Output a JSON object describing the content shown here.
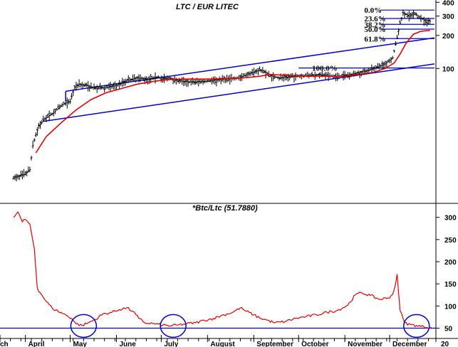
{
  "chart_data": [
    {
      "type": "candlestick",
      "title": "LTC / EUR LITEC",
      "y_scale": "log",
      "ylim": [
        6,
        420
      ],
      "y_ticks": [
        {
          "label": "400",
          "value": 400
        },
        {
          "label": "300",
          "value": 300
        },
        {
          "label": "200",
          "value": 200
        },
        {
          "label": "100",
          "value": 100
        }
      ],
      "price_path": [
        [
          "2021-03-24",
          10
        ],
        [
          "2021-03-28",
          10.5
        ],
        [
          "2021-04-01",
          11
        ],
        [
          "2021-04-04",
          12
        ],
        [
          "2021-04-06",
          20
        ],
        [
          "2021-04-08",
          25
        ],
        [
          "2021-04-10",
          30
        ],
        [
          "2021-04-14",
          35
        ],
        [
          "2021-04-18",
          38
        ],
        [
          "2021-04-22",
          42
        ],
        [
          "2021-04-27",
          48
        ],
        [
          "2021-05-01",
          50
        ],
        [
          "2021-05-04",
          68
        ],
        [
          "2021-05-07",
          72
        ],
        [
          "2021-05-12",
          70
        ],
        [
          "2021-05-18",
          66
        ],
        [
          "2021-05-25",
          67
        ],
        [
          "2021-06-01",
          70
        ],
        [
          "2021-06-08",
          78
        ],
        [
          "2021-06-15",
          82
        ],
        [
          "2021-06-22",
          80
        ],
        [
          "2021-06-29",
          84
        ],
        [
          "2021-07-01",
          80
        ],
        [
          "2021-07-06",
          82
        ],
        [
          "2021-07-13",
          77
        ],
        [
          "2021-07-22",
          75
        ],
        [
          "2021-08-01",
          77
        ],
        [
          "2021-08-12",
          80
        ],
        [
          "2021-08-22",
          82
        ],
        [
          "2021-08-29",
          90
        ],
        [
          "2021-09-05",
          97
        ],
        [
          "2021-09-08",
          94
        ],
        [
          "2021-09-12",
          86
        ],
        [
          "2021-09-18",
          82
        ],
        [
          "2021-09-25",
          84
        ],
        [
          "2021-10-05",
          86
        ],
        [
          "2021-10-15",
          88
        ],
        [
          "2021-10-25",
          84
        ],
        [
          "2021-11-05",
          88
        ],
        [
          "2021-11-15",
          95
        ],
        [
          "2021-11-22",
          102
        ],
        [
          "2021-11-28",
          110
        ],
        [
          "2021-12-03",
          125
        ],
        [
          "2021-12-06",
          190
        ],
        [
          "2021-12-08",
          260
        ],
        [
          "2021-12-10",
          320
        ],
        [
          "2021-12-14",
          300
        ],
        [
          "2021-12-18",
          315
        ],
        [
          "2021-12-24",
          275
        ],
        [
          "2021-12-28",
          270
        ]
      ],
      "moving_average": [
        [
          "2021-04-08",
          17
        ],
        [
          "2021-04-15",
          24
        ],
        [
          "2021-04-25",
          32
        ],
        [
          "2021-05-05",
          42
        ],
        [
          "2021-05-15",
          52
        ],
        [
          "2021-05-25",
          60
        ],
        [
          "2021-06-05",
          66
        ],
        [
          "2021-06-15",
          72
        ],
        [
          "2021-06-25",
          76
        ],
        [
          "2021-07-05",
          79
        ],
        [
          "2021-07-15",
          80
        ],
        [
          "2021-07-25",
          80
        ],
        [
          "2021-08-05",
          80
        ],
        [
          "2021-08-15",
          81
        ],
        [
          "2021-08-25",
          82
        ],
        [
          "2021-09-05",
          85
        ],
        [
          "2021-09-12",
          88
        ],
        [
          "2021-09-20",
          87
        ],
        [
          "2021-09-30",
          86
        ],
        [
          "2021-10-10",
          85
        ],
        [
          "2021-10-20",
          85
        ],
        [
          "2021-10-31",
          85
        ],
        [
          "2021-11-10",
          88
        ],
        [
          "2021-11-20",
          92
        ],
        [
          "2021-11-28",
          100
        ],
        [
          "2021-12-04",
          112
        ],
        [
          "2021-12-08",
          135
        ],
        [
          "2021-12-12",
          170
        ],
        [
          "2021-12-17",
          205
        ],
        [
          "2021-12-22",
          218
        ],
        [
          "2021-12-28",
          222
        ]
      ],
      "trend_channel": [
        {
          "name": "upper",
          "from": [
            "2021-04-28",
            62
          ],
          "to": [
            "2021-12-31",
            190
          ]
        },
        {
          "name": "lower",
          "from": [
            "2021-04-13",
            33
          ],
          "to": [
            "2021-12-31",
            110
          ]
        }
      ],
      "fibonacci": [
        {
          "label": "0.0%",
          "value": 340
        },
        {
          "label": "23.6%",
          "value": 285
        },
        {
          "label": "38.2%",
          "value": 252
        },
        {
          "label": "50.0%",
          "value": 228
        },
        {
          "label": "61.8%",
          "value": 187
        },
        {
          "label": "100.0%",
          "value": 101
        }
      ]
    },
    {
      "type": "line",
      "title": "*Btc/Ltc (51.7880)",
      "ylim": [
        38,
        330
      ],
      "y_ticks": [
        {
          "label": "300",
          "value": 300
        },
        {
          "label": "250",
          "value": 250
        },
        {
          "label": "200",
          "value": 200
        },
        {
          "label": "150",
          "value": 150
        },
        {
          "label": "100",
          "value": 100
        },
        {
          "label": "50",
          "value": 50
        }
      ],
      "reference_line": 50,
      "series": [
        {
          "values": [
            [
              "2021-03-24",
              300
            ],
            [
              "2021-03-27",
              312
            ],
            [
              "2021-03-30",
              290
            ],
            [
              "2021-04-01",
              295
            ],
            [
              "2021-04-04",
              285
            ],
            [
              "2021-04-07",
              230
            ],
            [
              "2021-04-09",
              140
            ],
            [
              "2021-04-12",
              125
            ],
            [
              "2021-04-15",
              110
            ],
            [
              "2021-04-19",
              95
            ],
            [
              "2021-04-23",
              88
            ],
            [
              "2021-04-28",
              80
            ],
            [
              "2021-05-02",
              72
            ],
            [
              "2021-05-05",
              60
            ],
            [
              "2021-05-09",
              56
            ],
            [
              "2021-05-13",
              62
            ],
            [
              "2021-05-18",
              70
            ],
            [
              "2021-05-23",
              82
            ],
            [
              "2021-05-28",
              85
            ],
            [
              "2021-06-03",
              92
            ],
            [
              "2021-06-08",
              96
            ],
            [
              "2021-06-12",
              88
            ],
            [
              "2021-06-16",
              72
            ],
            [
              "2021-06-20",
              62
            ],
            [
              "2021-06-26",
              60
            ],
            [
              "2021-07-02",
              57
            ],
            [
              "2021-07-07",
              55
            ],
            [
              "2021-07-12",
              57
            ],
            [
              "2021-07-18",
              60
            ],
            [
              "2021-07-24",
              62
            ],
            [
              "2021-07-30",
              68
            ],
            [
              "2021-08-05",
              72
            ],
            [
              "2021-08-12",
              80
            ],
            [
              "2021-08-18",
              86
            ],
            [
              "2021-08-23",
              96
            ],
            [
              "2021-08-27",
              88
            ],
            [
              "2021-09-01",
              80
            ],
            [
              "2021-09-05",
              73
            ],
            [
              "2021-09-10",
              68
            ],
            [
              "2021-09-15",
              62
            ],
            [
              "2021-09-22",
              65
            ],
            [
              "2021-09-29",
              72
            ],
            [
              "2021-10-06",
              76
            ],
            [
              "2021-10-13",
              80
            ],
            [
              "2021-10-20",
              86
            ],
            [
              "2021-10-27",
              90
            ],
            [
              "2021-11-03",
              102
            ],
            [
              "2021-11-08",
              125
            ],
            [
              "2021-11-12",
              130
            ],
            [
              "2021-11-18",
              124
            ],
            [
              "2021-11-24",
              115
            ],
            [
              "2021-11-30",
              118
            ],
            [
              "2021-12-03",
              126
            ],
            [
              "2021-12-05",
              150
            ],
            [
              "2021-12-06",
              172
            ],
            [
              "2021-12-08",
              90
            ],
            [
              "2021-12-11",
              62
            ],
            [
              "2021-12-15",
              58
            ],
            [
              "2021-12-19",
              56
            ],
            [
              "2021-12-24",
              53
            ],
            [
              "2021-12-29",
              52
            ]
          ]
        }
      ],
      "highlight_circles": [
        "2021-05-10",
        "2021-07-09",
        "2021-12-19"
      ]
    }
  ],
  "x_axis": {
    "labels": [
      {
        "label": "ch",
        "date": "2021-03-15"
      },
      {
        "label": "April",
        "date": "2021-04-01"
      },
      {
        "label": "May",
        "date": "2021-05-01"
      },
      {
        "label": "June",
        "date": "2021-06-01"
      },
      {
        "label": "July",
        "date": "2021-07-01"
      },
      {
        "label": "August",
        "date": "2021-08-01"
      },
      {
        "label": "September",
        "date": "2021-09-01"
      },
      {
        "label": "October",
        "date": "2021-10-01"
      },
      {
        "label": "November",
        "date": "2021-11-01"
      },
      {
        "label": "December",
        "date": "2021-12-01"
      },
      {
        "label": "20",
        "date": "2022-01-01"
      }
    ]
  },
  "colors": {
    "price": "#000000",
    "moving_average": "#e00000",
    "lines": "#0000cc",
    "ratio": "#e00000"
  }
}
